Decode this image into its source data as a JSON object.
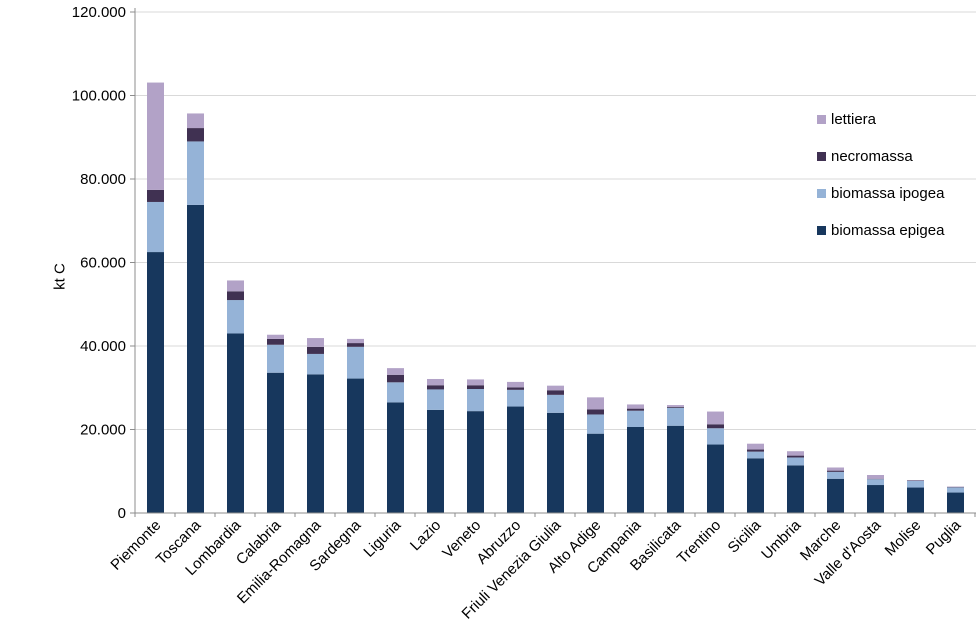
{
  "y_axis": {
    "title": "kt C",
    "tick_labels": [
      "0",
      "20.000",
      "40.000",
      "60.000",
      "80.000",
      "100.000",
      "120.000"
    ],
    "max": 120000,
    "step": 20000
  },
  "legend": [
    {
      "label": "lettiera",
      "color": "#B2A2C7"
    },
    {
      "label": "necromassa",
      "color": "#403152"
    },
    {
      "label": "biomassa ipogea",
      "color": "#95B3D7"
    },
    {
      "label": "biomassa epigea",
      "color": "#17375D"
    }
  ],
  "colors": {
    "gridline": "#D9D9D9",
    "axis": "#8C8C8C",
    "text": "#000000",
    "background": "#FFFFFF"
  },
  "chart_data": {
    "type": "bar",
    "stacked": true,
    "title": "",
    "xlabel": "",
    "ylabel": "kt C",
    "ylim": [
      0,
      120000
    ],
    "ytick_step": 20000,
    "grid": true,
    "legend_position": "right-inside",
    "categories": [
      "Piemonte",
      "Toscana",
      "Lombardia",
      "Calabria",
      "Emilia-Romagna",
      "Sardegna",
      "Liguria",
      "Lazio",
      "Veneto",
      "Abruzzo",
      "Friuli Venezia Giulia",
      "Alto Adige",
      "Campania",
      "Basilicata",
      "Trentino",
      "Sicilia",
      "Umbria",
      "Marche",
      "Valle d'Aosta",
      "Molise",
      "Puglia"
    ],
    "series": [
      {
        "name": "biomassa epigea",
        "color": "#17375D",
        "values": [
          62500,
          73800,
          43000,
          33600,
          33200,
          32200,
          26500,
          24700,
          24400,
          25500,
          24000,
          19000,
          20600,
          20900,
          16400,
          13100,
          11400,
          8200,
          6700,
          6100,
          4900
        ]
      },
      {
        "name": "biomassa ipogea",
        "color": "#95B3D7",
        "values": [
          12000,
          15200,
          8000,
          6700,
          4900,
          7600,
          4800,
          4900,
          5300,
          4000,
          4300,
          4600,
          3900,
          4300,
          3900,
          1600,
          1900,
          1650,
          1400,
          1600,
          1250
        ]
      },
      {
        "name": "necromassa",
        "color": "#403152",
        "values": [
          2900,
          3200,
          2100,
          1400,
          1700,
          900,
          1800,
          1000,
          900,
          600,
          1100,
          1200,
          500,
          200,
          950,
          500,
          450,
          300,
          100,
          100,
          100
        ]
      },
      {
        "name": "lettiera",
        "color": "#B2A2C7",
        "values": [
          25700,
          3500,
          2600,
          1000,
          2100,
          1000,
          1600,
          1500,
          1400,
          1300,
          1100,
          2900,
          1000,
          450,
          3050,
          1400,
          1050,
          750,
          900,
          100,
          100
        ]
      }
    ]
  }
}
